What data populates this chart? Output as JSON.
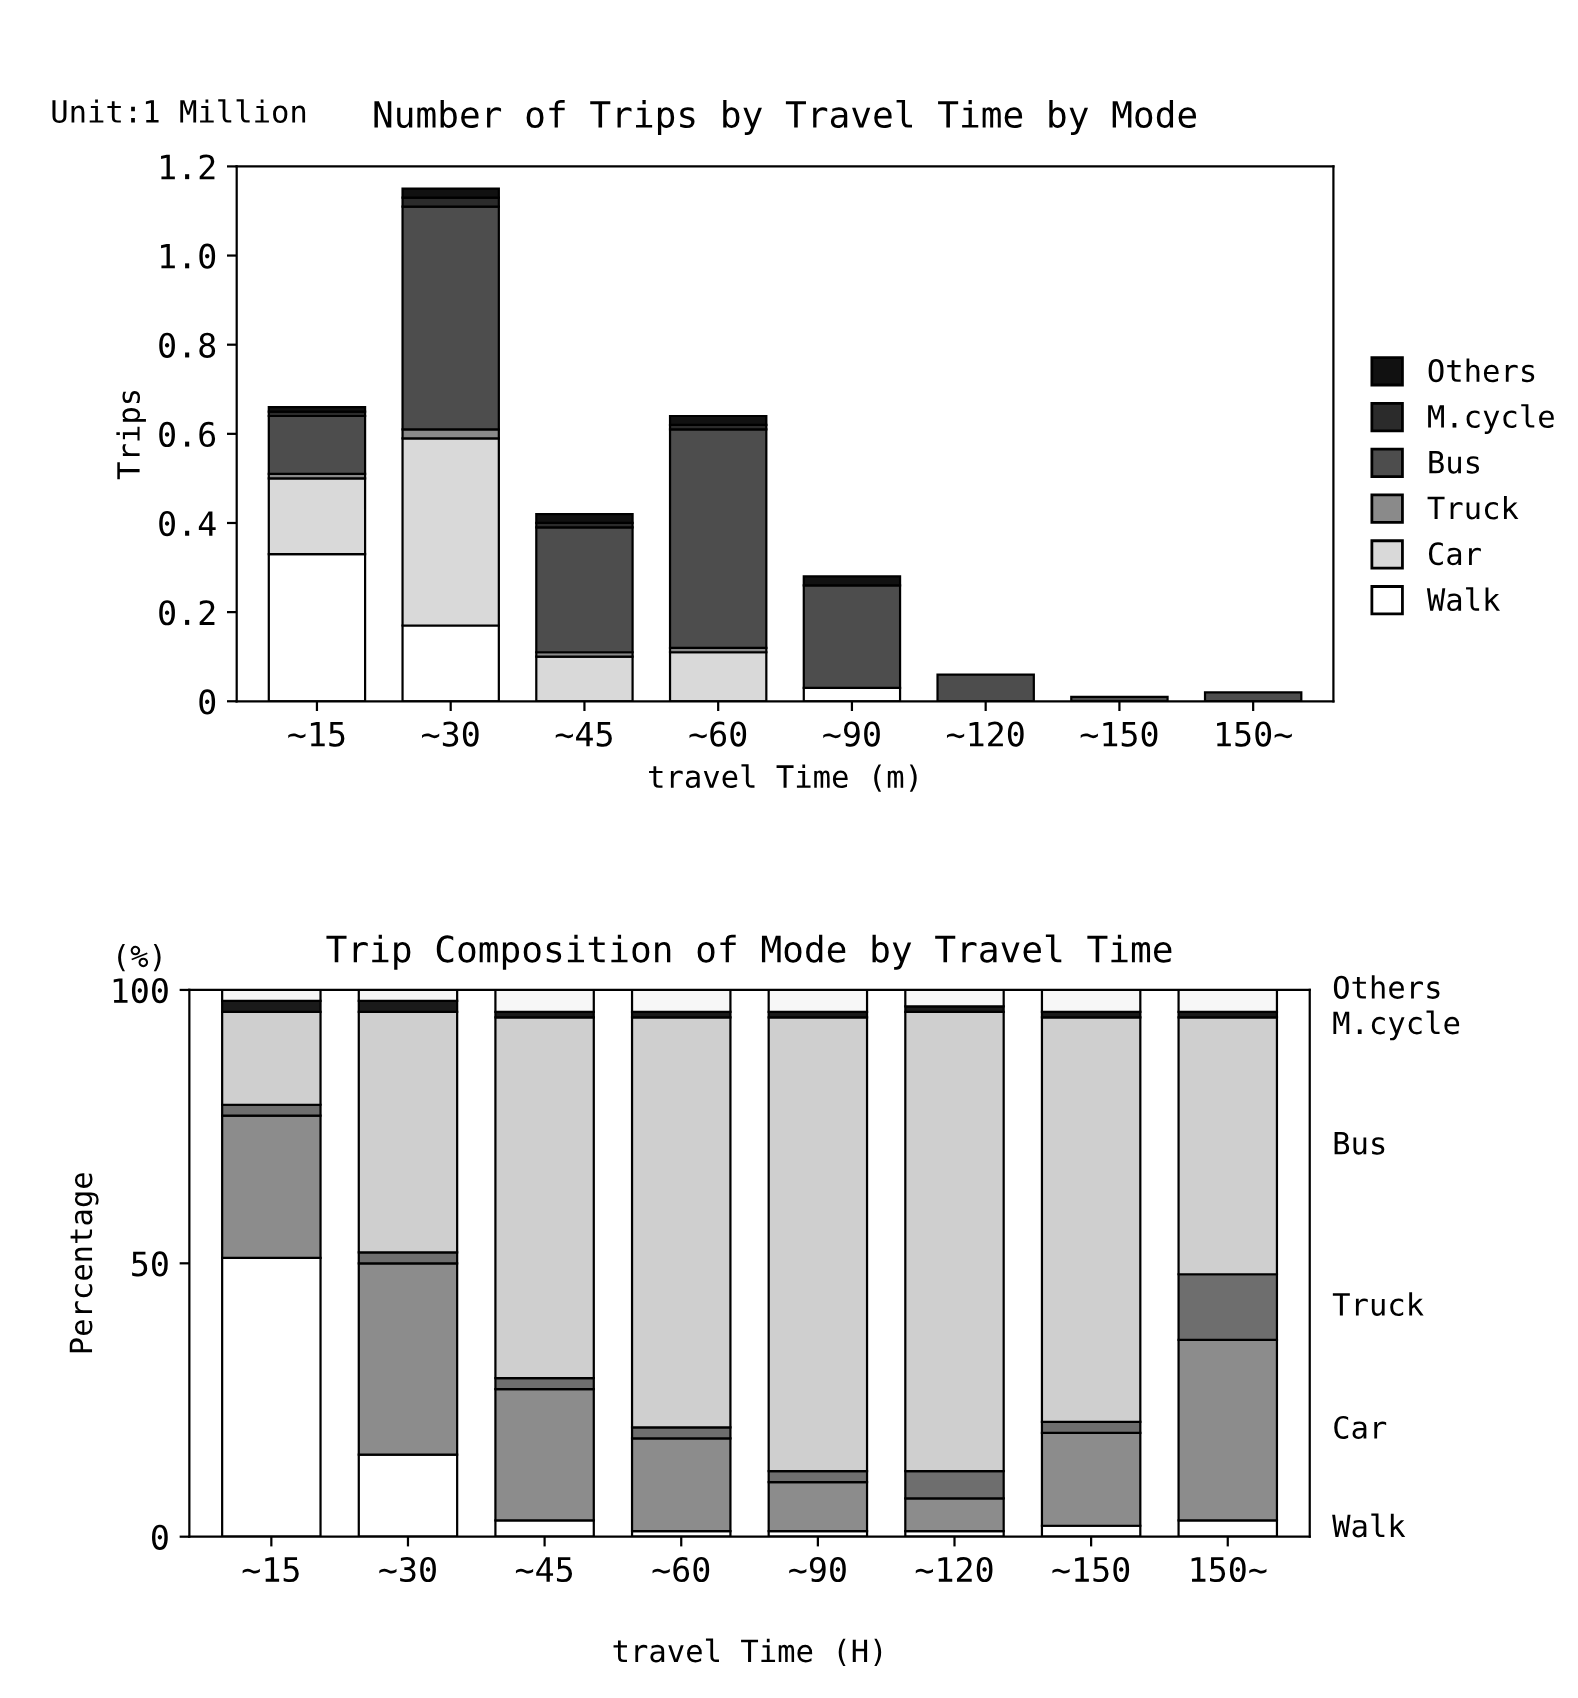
{
  "chart_data": [
    {
      "type": "bar",
      "title": "Number of Trips by Travel Time by Mode",
      "xlabel": "travel Time (m)",
      "ylabel": "Trips",
      "annotations": [
        "Unit:1 Million"
      ],
      "categories": [
        "∼15",
        "∼30",
        "∼45",
        "∼60",
        "∼90",
        "∼120",
        "∼150",
        "150∼"
      ],
      "stacked": true,
      "legend": "right",
      "ylim": [
        0,
        1.2
      ],
      "yticks": [
        0,
        0.2,
        0.4,
        0.6,
        0.8,
        {
          "value": 1,
          "label": "1.0"
        },
        1.2
      ],
      "series": [
        {
          "name": "Walk",
          "color": "#ffffff",
          "values": [
            0.33,
            0.17,
            null,
            null,
            0.03,
            null,
            null,
            null
          ]
        },
        {
          "name": "Car",
          "color": "#d9d9d9",
          "values": [
            0.17,
            0.42,
            0.1,
            0.11,
            null,
            null,
            null,
            null
          ]
        },
        {
          "name": "Truck",
          "color": "#8a8a8a",
          "values": [
            0.01,
            0.02,
            0.01,
            0.01,
            null,
            null,
            null,
            null
          ]
        },
        {
          "name": "Bus",
          "color": "#4d4d4d",
          "values": [
            0.13,
            0.5,
            0.28,
            0.49,
            0.23,
            0.06,
            0.01,
            0.02
          ]
        },
        {
          "name": "M.cycle",
          "color": "#2b2b2b",
          "values": [
            0.01,
            0.02,
            0.01,
            0.01,
            null,
            null,
            null,
            null
          ]
        },
        {
          "name": "Others",
          "color": "#111111",
          "values": [
            0.01,
            0.02,
            0.02,
            0.02,
            0.02,
            null,
            null,
            null
          ]
        }
      ]
    },
    {
      "type": "bar",
      "title": "Trip Composition of Mode by Travel Time",
      "xlabel": "travel Time (H)",
      "ylabel": "Percentage",
      "annotations": [
        "(%)"
      ],
      "categories": [
        "∼15",
        "∼30",
        "∼45",
        "∼60",
        "∼90",
        "∼120",
        "∼150",
        "150∼"
      ],
      "stacked": true,
      "ylim": [
        0,
        100
      ],
      "yticks": [
        0,
        50,
        100
      ],
      "series": [
        {
          "name": "Walk",
          "color": "#ffffff",
          "values": [
            51,
            15,
            3,
            1,
            1,
            1,
            2,
            3
          ]
        },
        {
          "name": "Car",
          "color": "#8c8c8c",
          "values": [
            26,
            35,
            24,
            17,
            9,
            6,
            17,
            33
          ]
        },
        {
          "name": "Truck",
          "color": "#6e6e6e",
          "values": [
            2,
            2,
            2,
            2,
            2,
            5,
            2,
            12
          ]
        },
        {
          "name": "Bus",
          "color": "#cfcfcf",
          "values": [
            17,
            44,
            66,
            75,
            83,
            84,
            74,
            47
          ]
        },
        {
          "name": "M.cycle",
          "color": "#1a1a1a",
          "values": [
            2,
            2,
            1,
            1,
            1,
            1,
            1,
            1
          ]
        },
        {
          "name": "Others",
          "color": "#f7f7f7",
          "values": [
            2,
            2,
            4,
            4,
            4,
            3,
            4,
            4
          ]
        }
      ]
    }
  ]
}
